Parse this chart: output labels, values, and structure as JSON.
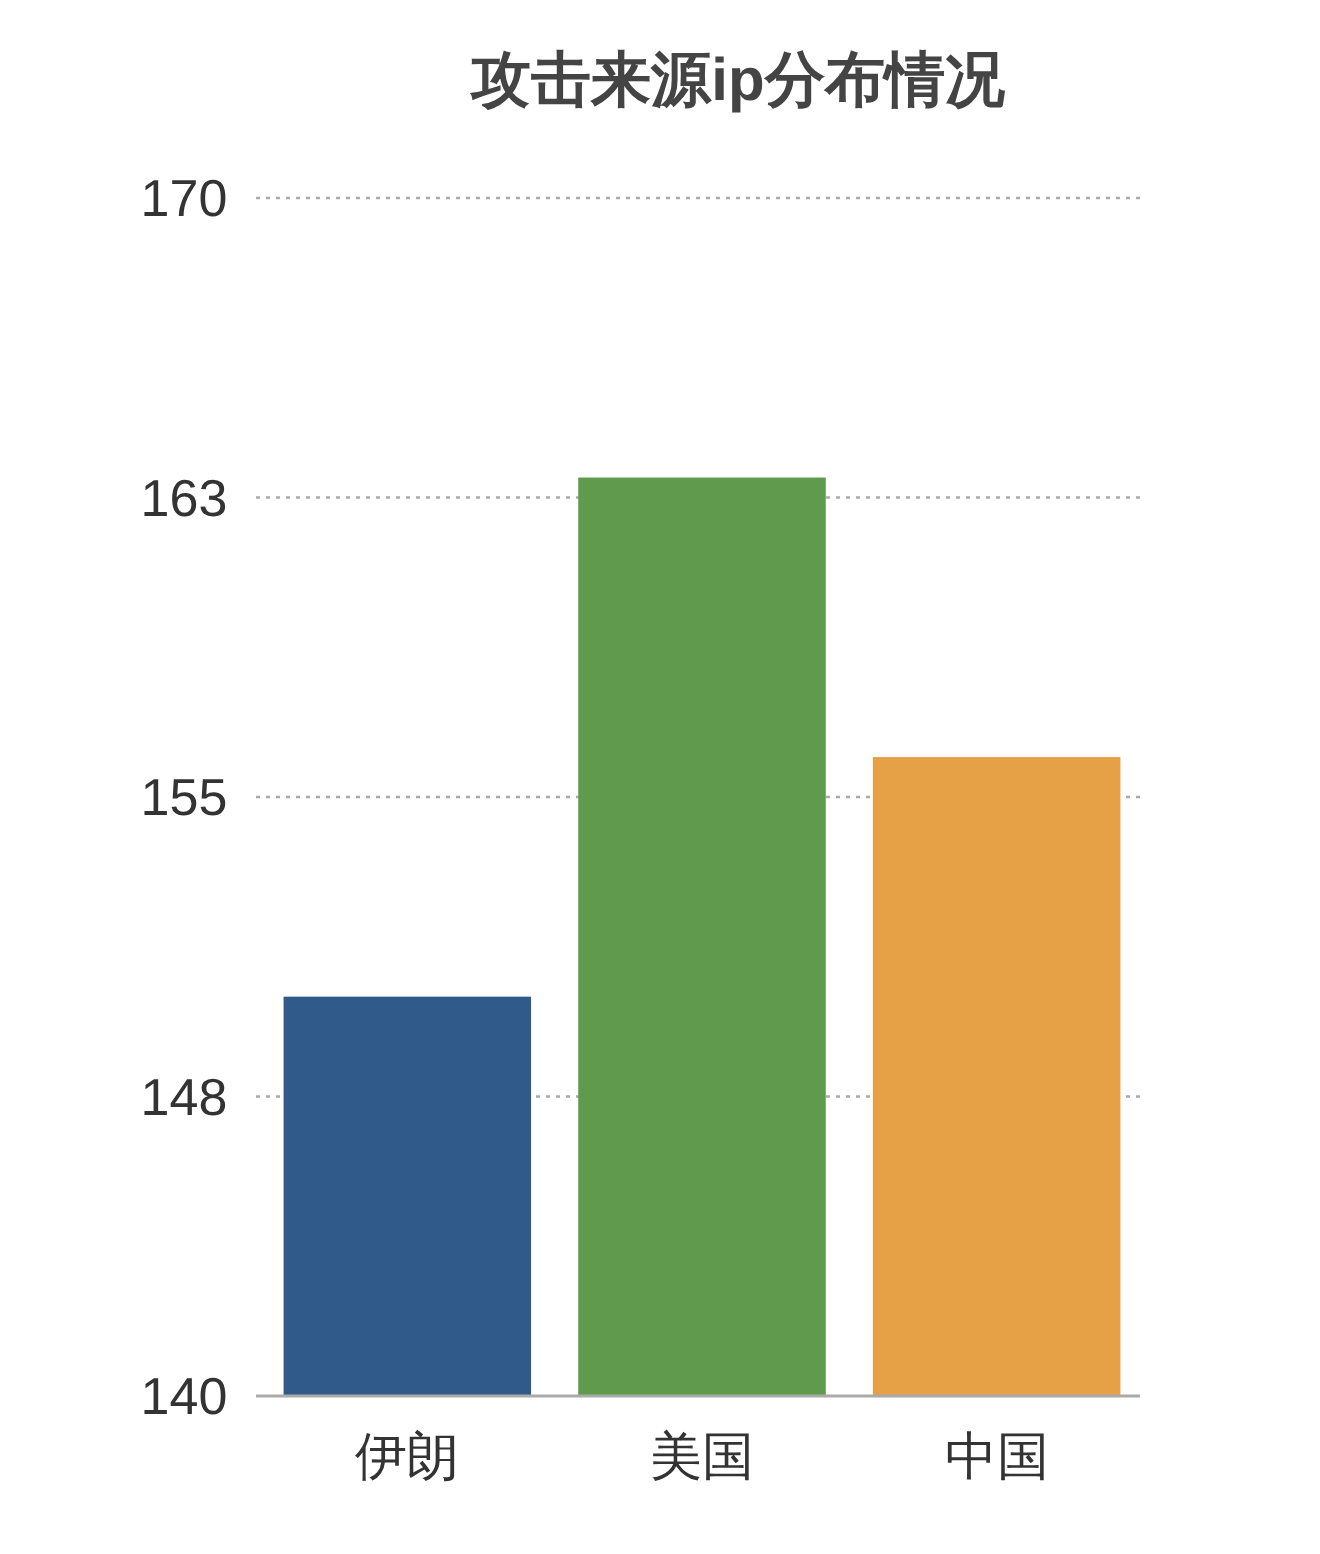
{
  "chart_data": {
    "type": "bar",
    "title": "攻击来源ip分布情况",
    "categories": [
      "伊朗",
      "美国",
      "中国"
    ],
    "values": [
      150,
      163,
      156
    ],
    "colors": [
      "#2f5a8a",
      "#5f9a4d",
      "#e6a146"
    ],
    "ylim": [
      140,
      170
    ],
    "yticks": [
      140,
      {
        "value": 147.5,
        "label": "148"
      },
      155,
      {
        "value": 162.5,
        "label": "163"
      },
      170
    ],
    "grid": "y"
  }
}
